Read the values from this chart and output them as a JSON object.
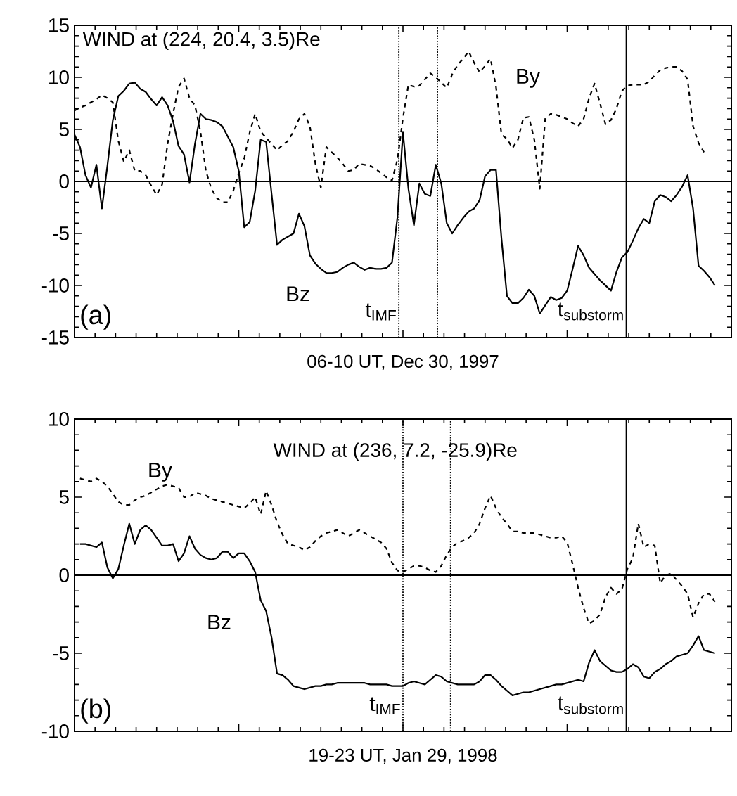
{
  "chart_data": [
    {
      "type": "line",
      "xlabel": "06-10 UT, Dec 30, 1997",
      "tick_labels": "y",
      "categories": [
        null,
        null,
        null,
        null,
        null,
        null,
        null,
        null,
        null,
        null,
        null,
        null,
        null,
        null,
        null,
        null,
        null,
        null,
        null,
        null,
        null,
        null,
        null,
        null,
        null,
        null,
        null,
        null,
        null,
        null,
        null,
        null,
        null,
        null,
        null,
        null,
        null,
        null,
        null,
        null,
        null,
        null,
        null,
        null,
        null,
        null,
        null,
        null,
        null,
        null,
        null,
        null,
        null,
        null,
        null,
        null,
        null,
        null,
        null,
        null,
        null,
        null,
        null,
        null,
        null,
        null,
        null,
        null,
        null,
        null,
        null,
        null,
        null,
        null,
        null,
        null,
        null,
        null,
        null,
        null,
        null,
        null,
        null,
        null,
        null,
        null,
        null,
        null,
        null,
        null,
        null,
        null,
        null,
        null,
        null,
        null,
        null,
        null,
        null,
        null,
        null,
        null,
        null,
        null,
        null,
        null,
        null,
        null,
        null,
        null,
        null,
        null,
        null,
        null,
        null,
        null,
        null,
        null,
        null,
        null,
        null
      ],
      "ylim": [
        -15,
        15
      ],
      "yticks": [
        -15,
        -10,
        -5,
        0,
        5,
        10,
        15
      ],
      "series": [
        {
          "name": "Bz",
          "color": "#000000",
          "line_style": "solid",
          "values": [
            4.5,
            3.3,
            0.6,
            -0.6,
            1.6,
            -2.6,
            1.5,
            5.9,
            8.2,
            8.7,
            9.4,
            9.5,
            8.9,
            8.6,
            7.9,
            7.3,
            8.1,
            7.3,
            5.8,
            3.4,
            2.6,
            -0.1,
            3.6,
            6.5,
            6.0,
            5.9,
            5.7,
            5.3,
            4.3,
            3.3,
            1.0,
            -4.4,
            -3.9,
            -0.9,
            4.0,
            3.8,
            -1.2,
            -6.1,
            -5.6,
            -5.3,
            -5.0,
            -3.1,
            -4.3,
            -7.1,
            -7.9,
            -8.4,
            -8.8,
            -8.8,
            -8.7,
            -8.3,
            -8.0,
            -7.8,
            -8.2,
            -8.5,
            -8.3,
            -8.4,
            -8.4,
            -8.3,
            -7.8,
            -3.4,
            4.7,
            -0.7,
            -4.2,
            -0.2,
            -1.2,
            -1.4,
            1.6,
            -0.2,
            -4.0,
            -5.0,
            -4.2,
            -3.5,
            -2.9,
            -2.6,
            -1.8,
            0.5,
            1.1,
            1.1,
            -5.5,
            -11.0,
            -11.7,
            -11.7,
            -11.2,
            -10.4,
            -11.0,
            -12.7,
            -11.9,
            -11.1,
            -11.4,
            -11.2,
            -10.5,
            -8.4,
            -6.2,
            -7.1,
            -8.3,
            -8.9,
            -9.5,
            -10.0,
            -10.5,
            -8.7,
            -7.3,
            -6.8,
            -5.7,
            -4.5,
            -3.6,
            -4.0,
            -1.9,
            -1.3,
            -1.5,
            -1.9,
            -1.3,
            -0.5,
            0.6,
            -2.6,
            -8.1,
            -8.6,
            -9.2,
            -10.0,
            null,
            null,
            null
          ]
        },
        {
          "name": "By",
          "color": "#000000",
          "line_style": "dashed",
          "values": [
            6.8,
            7.1,
            7.3,
            7.6,
            7.9,
            8.3,
            8.0,
            7.6,
            3.9,
            1.9,
            3.0,
            1.0,
            1.0,
            0.6,
            -0.4,
            -1.3,
            -0.3,
            3.6,
            6.5,
            9.1,
            9.9,
            8.0,
            7.3,
            4.8,
            1.0,
            -0.7,
            -1.6,
            -2.0,
            -2.0,
            -0.9,
            0.8,
            2.2,
            4.7,
            6.5,
            4.8,
            4.2,
            3.6,
            3.0,
            3.5,
            3.9,
            4.8,
            6.0,
            6.5,
            5.3,
            1.7,
            -0.6,
            3.3,
            2.8,
            2.3,
            1.7,
            1.0,
            1.1,
            1.7,
            1.6,
            1.5,
            1.2,
            0.8,
            0.4,
            0.1,
            2.1,
            6.1,
            9.3,
            9.1,
            9.2,
            9.8,
            10.4,
            10.0,
            9.5,
            9.0,
            10.3,
            11.2,
            11.8,
            12.5,
            11.4,
            10.5,
            11.1,
            11.8,
            9.1,
            4.5,
            4.1,
            3.2,
            4.0,
            6.1,
            6.2,
            4.0,
            -0.7,
            6.1,
            6.5,
            6.4,
            6.2,
            6.0,
            5.6,
            5.3,
            6.0,
            8.0,
            9.4,
            7.5,
            5.5,
            5.9,
            7.0,
            8.7,
            9.2,
            9.3,
            9.3,
            9.3,
            9.6,
            10.2,
            10.7,
            10.9,
            11.0,
            11.0,
            10.6,
            9.8,
            5.3,
            3.7,
            2.8,
            null,
            null,
            null,
            null,
            null
          ]
        }
      ],
      "ref_lines": [
        {
          "axis": "y",
          "value": 0,
          "label": null,
          "line_style": "solid"
        }
      ],
      "annotations": [
        "WIND at (224, 20.4, 3.5)Re",
        "(a)",
        "t$_{IMF}$",
        "t$_{substorm}$"
      ]
    },
    {
      "type": "line",
      "xlabel": "19-23 UT, Jan 29, 1998",
      "tick_labels": "y",
      "categories": [
        null,
        null,
        null,
        null,
        null,
        null,
        null,
        null,
        null,
        null,
        null,
        null,
        null,
        null,
        null,
        null,
        null,
        null,
        null,
        null,
        null,
        null,
        null,
        null,
        null,
        null,
        null,
        null,
        null,
        null,
        null,
        null,
        null,
        null,
        null,
        null,
        null,
        null,
        null,
        null,
        null,
        null,
        null,
        null,
        null,
        null,
        null,
        null,
        null,
        null,
        null,
        null,
        null,
        null,
        null,
        null,
        null,
        null,
        null,
        null,
        null,
        null,
        null,
        null,
        null,
        null,
        null,
        null,
        null,
        null,
        null,
        null,
        null,
        null,
        null,
        null,
        null,
        null,
        null,
        null,
        null,
        null,
        null,
        null,
        null,
        null,
        null,
        null,
        null,
        null,
        null,
        null,
        null,
        null,
        null,
        null,
        null,
        null,
        null,
        null,
        null,
        null,
        null,
        null,
        null,
        null,
        null,
        null,
        null,
        null,
        null,
        null,
        null,
        null,
        null,
        null,
        null,
        null,
        null,
        null,
        null
      ],
      "ylim": [
        -10,
        10
      ],
      "yticks": [
        -10,
        -5,
        0,
        5,
        10
      ],
      "series": [
        {
          "name": "Bz",
          "color": "#000000",
          "line_style": "solid",
          "values": [
            null,
            2.0,
            2.0,
            1.9,
            1.8,
            2.1,
            0.5,
            -0.2,
            0.4,
            1.9,
            3.3,
            2.0,
            2.9,
            3.2,
            2.9,
            2.4,
            1.9,
            1.9,
            2.0,
            0.9,
            1.4,
            2.5,
            1.7,
            1.3,
            1.1,
            1.0,
            1.1,
            1.5,
            1.5,
            1.1,
            1.4,
            1.4,
            0.9,
            0.2,
            -1.6,
            -2.3,
            -4.0,
            -6.3,
            -6.4,
            -6.7,
            -7.1,
            -7.2,
            -7.3,
            -7.2,
            -7.1,
            -7.1,
            -7.0,
            -7.0,
            -6.9,
            -6.9,
            -6.9,
            -6.9,
            -6.9,
            -6.9,
            -7.0,
            -7.0,
            -7.0,
            -7.0,
            -7.1,
            -7.1,
            -7.1,
            -6.9,
            -6.8,
            -6.9,
            -7.0,
            -6.7,
            -6.4,
            -6.5,
            -6.8,
            -6.9,
            -7.0,
            -7.0,
            -7.0,
            -7.0,
            -6.8,
            -6.4,
            -6.4,
            -6.7,
            -7.1,
            -7.4,
            -7.7,
            -7.6,
            -7.5,
            -7.5,
            -7.4,
            -7.3,
            -7.2,
            -7.1,
            -7.0,
            -7.0,
            -6.9,
            -6.8,
            -6.7,
            -6.8,
            -5.6,
            -4.8,
            -5.5,
            -5.8,
            -6.1,
            -6.2,
            -6.2,
            -6.0,
            -5.7,
            -5.9,
            -6.5,
            -6.6,
            -6.2,
            -6.0,
            -5.7,
            -5.5,
            -5.2,
            -5.1,
            -5.0,
            -4.5,
            -3.9,
            -4.8,
            -4.9,
            -5.0,
            null,
            null,
            null
          ]
        },
        {
          "name": "By",
          "color": "#000000",
          "line_style": "dashed",
          "values": [
            null,
            6.2,
            6.1,
            6.0,
            6.2,
            6.0,
            5.7,
            5.2,
            4.7,
            4.5,
            4.5,
            4.8,
            5.0,
            5.1,
            5.3,
            5.5,
            5.7,
            5.8,
            5.7,
            5.6,
            5.0,
            5.0,
            5.3,
            5.2,
            5.1,
            4.9,
            4.8,
            4.7,
            4.6,
            4.5,
            4.4,
            4.3,
            4.6,
            5.0,
            3.9,
            5.4,
            4.5,
            3.4,
            2.6,
            2.0,
            1.9,
            1.8,
            1.6,
            1.8,
            2.2,
            2.5,
            2.7,
            2.8,
            2.9,
            2.7,
            2.5,
            2.7,
            2.9,
            2.7,
            2.5,
            2.3,
            2.1,
            1.7,
            0.8,
            0.3,
            0.2,
            0.4,
            0.6,
            0.6,
            0.5,
            0.3,
            0.2,
            0.6,
            1.3,
            1.8,
            2.1,
            2.2,
            2.4,
            2.7,
            3.3,
            4.3,
            5.1,
            4.3,
            3.7,
            3.3,
            2.8,
            2.8,
            2.7,
            2.7,
            2.7,
            2.6,
            2.5,
            2.4,
            2.4,
            2.5,
            2.1,
            0.7,
            -0.8,
            -2.1,
            -3.1,
            -2.9,
            -2.5,
            -1.4,
            -0.8,
            -1.2,
            -0.9,
            0.4,
            1.1,
            3.3,
            1.8,
            2.0,
            1.9,
            -0.5,
            0.0,
            0.1,
            -0.3,
            -0.7,
            -1.2,
            -2.7,
            -1.8,
            -1.2,
            -1.2,
            -1.7,
            null,
            null,
            null
          ]
        }
      ],
      "ref_lines": [
        {
          "axis": "y",
          "value": 0,
          "label": null,
          "line_style": "solid"
        }
      ],
      "annotations": [
        "WIND at (236, 7.2, -25.9)Re",
        "(b)",
        "t$_{IMF}$",
        "t$_{substorm}$"
      ]
    }
  ]
}
